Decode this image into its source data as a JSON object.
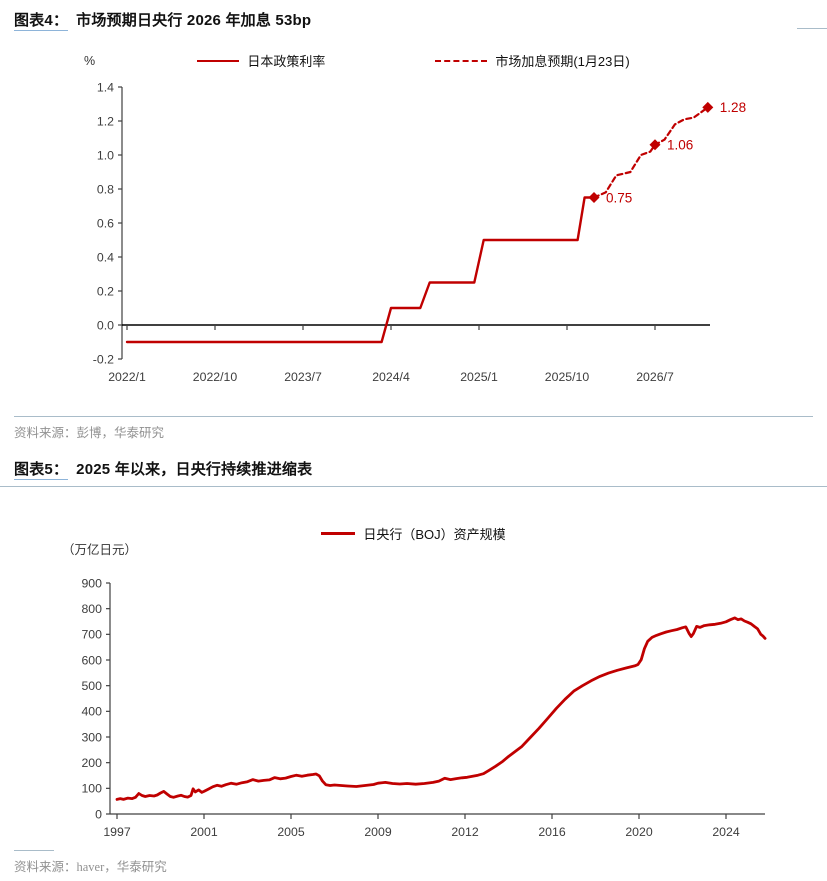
{
  "colors": {
    "red": "#C00000",
    "axis": "#404040",
    "axis_label": "#3d3d3d",
    "zero_line": "#000000",
    "rule": "#A9BCC9",
    "title_underline": "#8EB4D9",
    "source_text": "#919191"
  },
  "fig4": {
    "label": "图表4：",
    "title": "市场预期日央行 2026 年加息 53bp",
    "unit": "%",
    "legend": [
      {
        "name": "日本政策利率",
        "style": "solid"
      },
      {
        "name": "市场加息预期(1月23日)",
        "style": "dashed"
      }
    ],
    "source": "资料来源：彭博，华泰研究"
  },
  "fig5": {
    "label": "图表5：",
    "title": "2025 年以来，日央行持续推进缩表",
    "unit": "（万亿日元）",
    "legend": [
      {
        "name": "日央行（BOJ）资产规模",
        "style": "solid"
      }
    ],
    "source": "资料来源：haver，华泰研究"
  },
  "chart_data": [
    {
      "type": "line",
      "title": "市场预期日央行 2026 年加息 53bp",
      "ylabel": "%",
      "ylim": [
        -0.2,
        1.4
      ],
      "yticks": [
        "1.4",
        "1.2",
        "1.0",
        "0.8",
        "0.6",
        "0.4",
        "0.2",
        "0.0",
        "-0.2"
      ],
      "xtick_years": [
        2022.0,
        2022.75,
        2023.5,
        2024.25,
        2025.0,
        2025.75,
        2026.5
      ],
      "xtick_labels": [
        "2022/1",
        "2022/10",
        "2023/7",
        "2024/4",
        "2025/1",
        "2025/10",
        "2026/7"
      ],
      "grid": false,
      "legend_position": "top",
      "series": [
        {
          "name": "日本政策利率",
          "style": "solid",
          "points": [
            [
              2022.0,
              -0.1
            ],
            [
              2024.17,
              -0.1
            ],
            [
              2024.25,
              0.1
            ],
            [
              2024.5,
              0.1
            ],
            [
              2024.58,
              0.25
            ],
            [
              2024.96,
              0.25
            ],
            [
              2025.04,
              0.5
            ],
            [
              2025.84,
              0.5
            ],
            [
              2025.9,
              0.75
            ],
            [
              2025.98,
              0.75
            ]
          ]
        },
        {
          "name": "市场加息预期(1月23日)",
          "style": "dashed",
          "points": [
            [
              2025.98,
              0.75
            ],
            [
              2026.08,
              0.78
            ],
            [
              2026.17,
              0.88
            ],
            [
              2026.29,
              0.9
            ],
            [
              2026.38,
              1.0
            ],
            [
              2026.46,
              1.02
            ],
            [
              2026.5,
              1.06
            ],
            [
              2026.58,
              1.09
            ],
            [
              2026.67,
              1.18
            ],
            [
              2026.75,
              1.21
            ],
            [
              2026.83,
              1.22
            ],
            [
              2026.95,
              1.28
            ]
          ],
          "markers": [
            {
              "x": 2025.98,
              "y": 0.75,
              "label": "0.75"
            },
            {
              "x": 2026.5,
              "y": 1.06,
              "label": "1.06"
            },
            {
              "x": 2026.95,
              "y": 1.28,
              "label": "1.28"
            }
          ]
        }
      ]
    },
    {
      "type": "line",
      "title": "2025 年以来，日央行持续推进缩表",
      "ylabel": "（万亿日元）",
      "ylim": [
        0,
        900
      ],
      "yticks": [
        "900",
        "800",
        "700",
        "600",
        "500",
        "400",
        "300",
        "200",
        "100",
        "0"
      ],
      "xtick_years": [
        1997,
        2001,
        2005,
        2009,
        2012,
        2016,
        2020,
        2024
      ],
      "xtick_labels": [
        "1997",
        "2001",
        "2005",
        "2009",
        "2012",
        "2016",
        "2020",
        "2024"
      ],
      "grid": false,
      "legend_position": "top",
      "series": [
        {
          "name": "日央行（BOJ）资产规模",
          "style": "solid",
          "points": [
            [
              1997.0,
              57
            ],
            [
              1997.15,
              60
            ],
            [
              1997.3,
              57
            ],
            [
              1997.5,
              62
            ],
            [
              1997.7,
              60
            ],
            [
              1997.85,
              65
            ],
            [
              1998.0,
              80
            ],
            [
              1998.15,
              72
            ],
            [
              1998.3,
              68
            ],
            [
              1998.5,
              72
            ],
            [
              1998.7,
              70
            ],
            [
              1998.85,
              74
            ],
            [
              1999.0,
              82
            ],
            [
              1999.15,
              88
            ],
            [
              1999.3,
              78
            ],
            [
              1999.45,
              68
            ],
            [
              1999.6,
              65
            ],
            [
              1999.8,
              70
            ],
            [
              1999.95,
              73
            ],
            [
              2000.1,
              68
            ],
            [
              2000.25,
              66
            ],
            [
              2000.4,
              72
            ],
            [
              2000.5,
              98
            ],
            [
              2000.6,
              86
            ],
            [
              2000.75,
              94
            ],
            [
              2000.9,
              84
            ],
            [
              2001.0,
              88
            ],
            [
              2001.2,
              97
            ],
            [
              2001.4,
              106
            ],
            [
              2001.6,
              112
            ],
            [
              2001.8,
              108
            ],
            [
              2002.0,
              114
            ],
            [
              2002.25,
              120
            ],
            [
              2002.5,
              116
            ],
            [
              2002.75,
              122
            ],
            [
              2003.0,
              126
            ],
            [
              2003.25,
              134
            ],
            [
              2003.5,
              128
            ],
            [
              2003.75,
              131
            ],
            [
              2004.0,
              133
            ],
            [
              2004.25,
              142
            ],
            [
              2004.5,
              137
            ],
            [
              2004.75,
              140
            ],
            [
              2005.0,
              146
            ],
            [
              2005.25,
              151
            ],
            [
              2005.5,
              147
            ],
            [
              2005.75,
              151
            ],
            [
              2006.0,
              154
            ],
            [
              2006.15,
              156
            ],
            [
              2006.3,
              149
            ],
            [
              2006.45,
              128
            ],
            [
              2006.6,
              114
            ],
            [
              2006.8,
              111
            ],
            [
              2007.0,
              113
            ],
            [
              2007.3,
              111
            ],
            [
              2007.6,
              109
            ],
            [
              2008.0,
              107
            ],
            [
              2008.4,
              111
            ],
            [
              2008.8,
              115
            ],
            [
              2009.0,
              120
            ],
            [
              2009.25,
              123
            ],
            [
              2009.5,
              119
            ],
            [
              2009.75,
              117
            ],
            [
              2010.0,
              119
            ],
            [
              2010.3,
              116
            ],
            [
              2010.6,
              119
            ],
            [
              2010.9,
              123
            ],
            [
              2011.1,
              128
            ],
            [
              2011.3,
              139
            ],
            [
              2011.5,
              134
            ],
            [
              2011.7,
              138
            ],
            [
              2011.9,
              141
            ],
            [
              2012.1,
              143
            ],
            [
              2012.35,
              147
            ],
            [
              2012.6,
              151
            ],
            [
              2012.85,
              157
            ],
            [
              2013.1,
              170
            ],
            [
              2013.4,
              186
            ],
            [
              2013.7,
              203
            ],
            [
              2014.0,
              224
            ],
            [
              2014.3,
              243
            ],
            [
              2014.6,
              262
            ],
            [
              2015.0,
              298
            ],
            [
              2015.4,
              334
            ],
            [
              2015.8,
              372
            ],
            [
              2016.2,
              412
            ],
            [
              2016.6,
              447
            ],
            [
              2017.0,
              479
            ],
            [
              2017.4,
              500
            ],
            [
              2017.8,
              519
            ],
            [
              2018.2,
              536
            ],
            [
              2018.6,
              549
            ],
            [
              2019.0,
              560
            ],
            [
              2019.4,
              569
            ],
            [
              2019.8,
              577
            ],
            [
              2019.95,
              582
            ],
            [
              2020.1,
              601
            ],
            [
              2020.25,
              644
            ],
            [
              2020.4,
              673
            ],
            [
              2020.6,
              688
            ],
            [
              2020.8,
              696
            ],
            [
              2021.0,
              702
            ],
            [
              2021.25,
              709
            ],
            [
              2021.5,
              714
            ],
            [
              2021.75,
              719
            ],
            [
              2022.0,
              726
            ],
            [
              2022.15,
              729
            ],
            [
              2022.3,
              704
            ],
            [
              2022.4,
              691
            ],
            [
              2022.5,
              703
            ],
            [
              2022.65,
              731
            ],
            [
              2022.8,
              727
            ],
            [
              2023.0,
              734
            ],
            [
              2023.25,
              737
            ],
            [
              2023.5,
              739
            ],
            [
              2023.75,
              743
            ],
            [
              2024.0,
              749
            ],
            [
              2024.2,
              757
            ],
            [
              2024.4,
              764
            ],
            [
              2024.55,
              757
            ],
            [
              2024.7,
              760
            ],
            [
              2024.85,
              752
            ],
            [
              2025.0,
              747
            ],
            [
              2025.15,
              741
            ],
            [
              2025.3,
              731
            ],
            [
              2025.45,
              722
            ],
            [
              2025.6,
              700
            ],
            [
              2025.7,
              693
            ],
            [
              2025.8,
              684
            ]
          ]
        }
      ]
    }
  ]
}
